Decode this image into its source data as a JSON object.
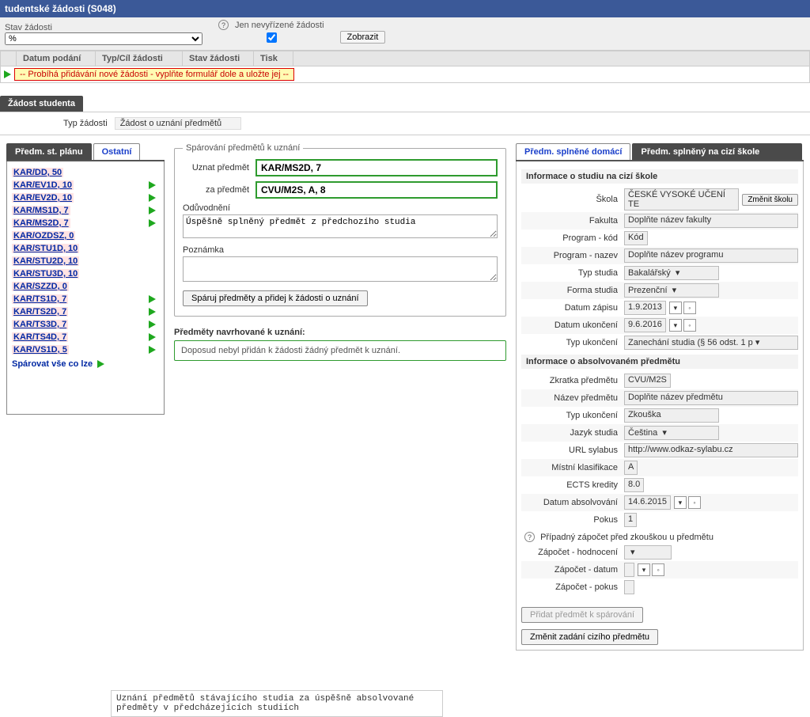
{
  "header": {
    "title": "tudentské žádosti (S048)"
  },
  "filter": {
    "stav_label": "Stav žádosti",
    "stav_value": "%",
    "nevyrizene_label": "Jen nevyřízené žádosti",
    "nevyrizene_checked": true,
    "zobrazit": "Zobrazit"
  },
  "grid": {
    "columns": [
      "",
      "Datum podání",
      "Typ/Cíl žádosti",
      "Stav žádosti",
      "Tisk"
    ],
    "notice": "-- Probíhá přidávání nové žádosti - vyplňte formulář dole a uložte jej --"
  },
  "request_tab": "Žádost studenta",
  "request_type_label": "Typ žádosti",
  "request_type_value": "Žádost o uznání předmětů",
  "left": {
    "tab_active": "Předm. st. plánu",
    "tab_inactive": "Ostatní",
    "subjects": [
      {
        "code": "KAR/DD, 50",
        "arrow": false
      },
      {
        "code": "KAR/EV1D, 10",
        "arrow": true
      },
      {
        "code": "KAR/EV2D, 10",
        "arrow": true
      },
      {
        "code": "KAR/MS1D, 7",
        "arrow": true
      },
      {
        "code": "KAR/MS2D, 7",
        "arrow": true
      },
      {
        "code": "KAR/OZDSZ, 0",
        "arrow": false
      },
      {
        "code": "KAR/STU1D, 10",
        "arrow": false
      },
      {
        "code": "KAR/STU2D, 10",
        "arrow": false
      },
      {
        "code": "KAR/STU3D, 10",
        "arrow": false
      },
      {
        "code": "KAR/SZZD, 0",
        "arrow": false
      },
      {
        "code": "KAR/TS1D, 7",
        "arrow": true
      },
      {
        "code": "KAR/TS2D, 7",
        "arrow": true
      },
      {
        "code": "KAR/TS3D, 7",
        "arrow": true
      },
      {
        "code": "KAR/TS4D, 7",
        "arrow": true
      },
      {
        "code": "KAR/VS1D, 5",
        "arrow": true
      }
    ],
    "pair_all": "Spárovat vše co lze"
  },
  "pairing": {
    "legend": "Spárování předmětů k uznání",
    "uznat_label": "Uznat předmět",
    "uznat_value": "KAR/MS2D, 7",
    "za_label": "za předmět",
    "za_value": "CVU/M2S, A, 8",
    "oduvodneni_label": "Odůvodnění",
    "oduvodneni_value": "Úspěšně splněný předmět z předchozího studia",
    "poznamka_label": "Poznámka",
    "poznamka_value": "",
    "submit": "Spáruj předměty a přidej k žádosti o uznání"
  },
  "proposed": {
    "heading": "Předměty navrhované k uznání:",
    "empty": "Doposud nebyl přidán k žádosti žádný předmět k uznání."
  },
  "right": {
    "tab_inactive": "Předm. splněné domácí",
    "tab_active": "Předm. splněný na cizí škole",
    "study_heading": "Informace o studiu na cizí škole",
    "study": {
      "skola_label": "Škola",
      "skola_value": "ČESKÉ VYSOKÉ UČENÍ TE",
      "zmenit_skolu": "Změnit školu",
      "fakulta_label": "Fakulta",
      "fakulta_value": "Doplňte název fakulty",
      "program_kod_label": "Program - kód",
      "program_kod_value": "Kód",
      "program_nazev_label": "Program - nazev",
      "program_nazev_value": "Doplňte název programu",
      "typ_studia_label": "Typ studia",
      "typ_studia_value": "Bakalářský",
      "forma_label": "Forma studia",
      "forma_value": "Prezenční",
      "datum_zapisu_label": "Datum zápisu",
      "datum_zapisu_value": "1.9.2013",
      "datum_ukonceni_label": "Datum ukončení",
      "datum_ukonceni_value": "9.6.2016",
      "typ_ukonceni_label": "Typ ukončení",
      "typ_ukonceni_value": "Zanechání studia (§ 56 odst. 1 p"
    },
    "subject_heading": "Informace o absolvovaném předmětu",
    "subject": {
      "zkratka_label": "Zkratka předmětu",
      "zkratka_value": "CVU/M2S",
      "nazev_label": "Název předmětu",
      "nazev_value": "Doplňte název předmětu",
      "typ_ukonceni_label": "Typ ukončení",
      "typ_ukonceni_value": "Zkouška",
      "jazyk_label": "Jazyk studia",
      "jazyk_value": "Čeština",
      "url_label": "URL sylabus",
      "url_value": "http://www.odkaz-sylabu.cz",
      "mistni_label": "Místní klasifikace",
      "mistni_value": "A",
      "ects_label": "ECTS kredity",
      "ects_value": "8.0",
      "datum_abs_label": "Datum absolvování",
      "datum_abs_value": "14.6.2015",
      "pokus_label": "Pokus",
      "pokus_value": "1"
    },
    "zapocet_heading": "Případný zápočet před zkouškou u předmětu",
    "zapocet": {
      "hodnoceni_label": "Zápočet - hodnocení",
      "datum_label": "Zápočet - datum",
      "pokus_label": "Zápočet - pokus"
    },
    "add_btn": "Přidat předmět k spárování",
    "change_btn": "Změnit zadání cizího předmětu"
  },
  "footer_note": "Uznání předmětů stávajícího studia za úspěšně absolvované předměty v předcházejících studiích"
}
